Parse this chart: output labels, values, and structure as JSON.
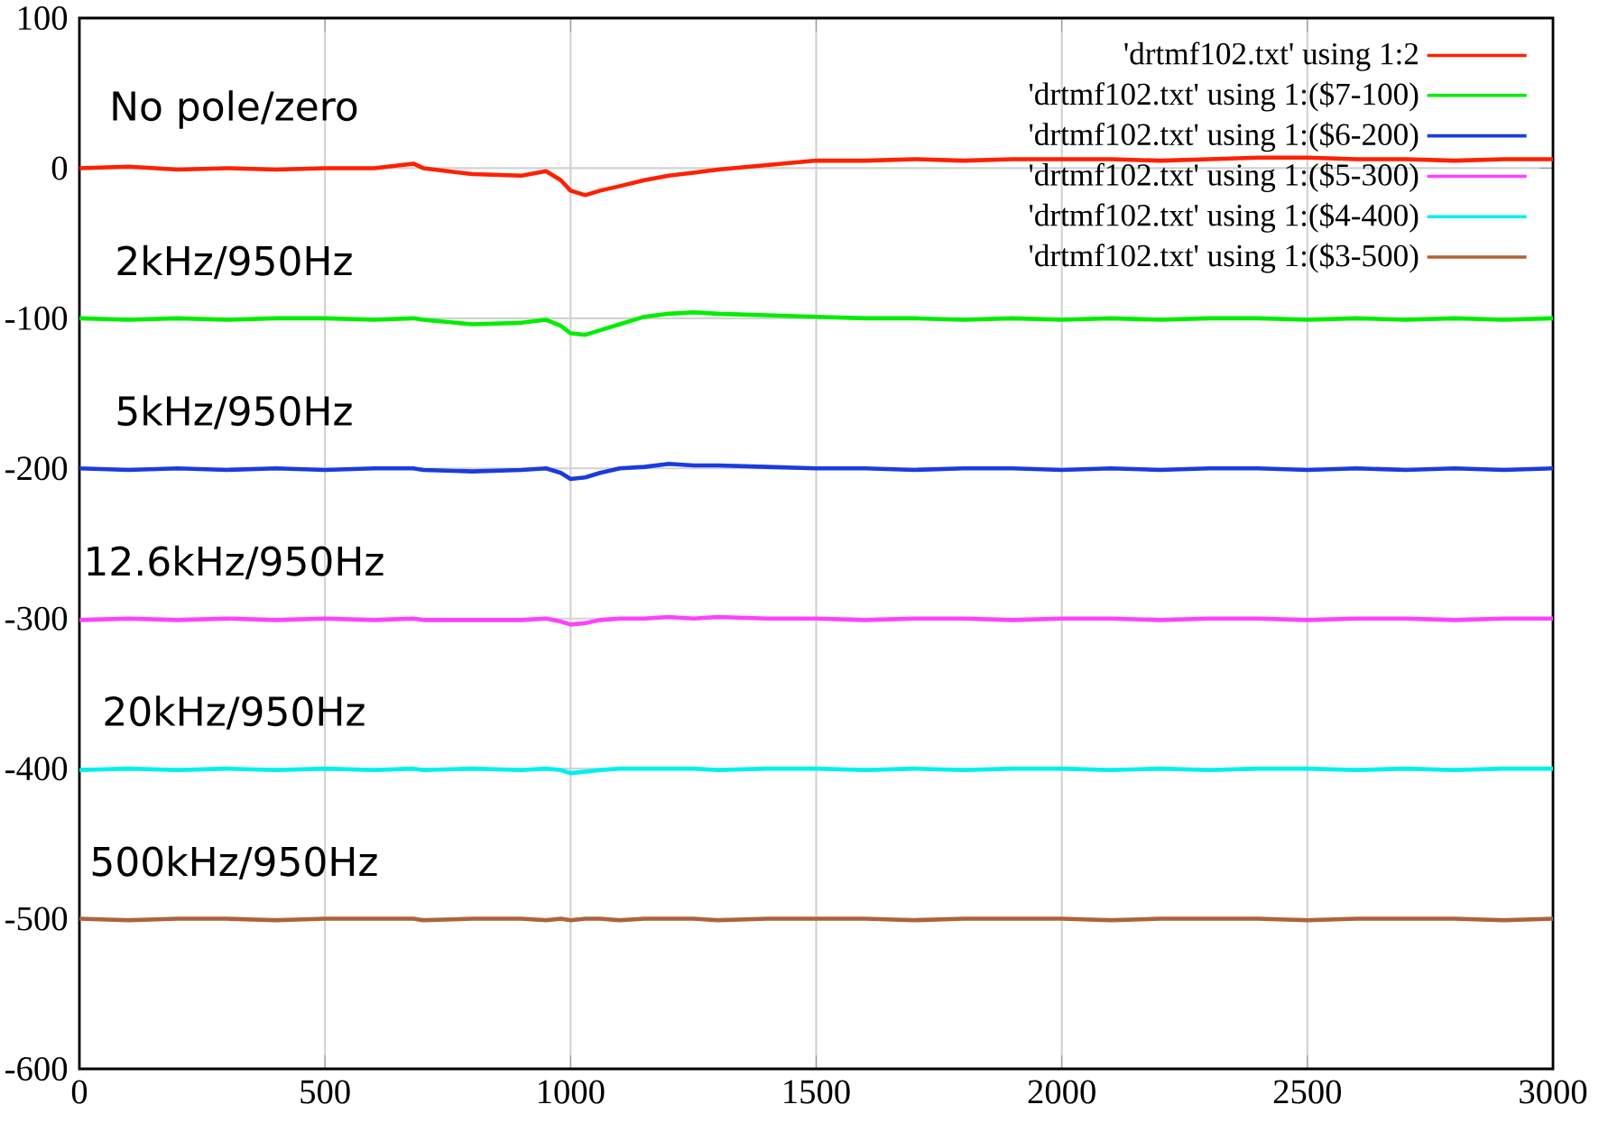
{
  "chart_data": {
    "type": "line",
    "x": [
      0,
      100,
      200,
      300,
      400,
      500,
      600,
      680,
      700,
      800,
      900,
      950,
      980,
      1000,
      1030,
      1060,
      1100,
      1150,
      1200,
      1250,
      1300,
      1400,
      1500,
      1600,
      1700,
      1800,
      1900,
      2000,
      2100,
      2200,
      2300,
      2400,
      2500,
      2600,
      2700,
      2800,
      2900,
      3000
    ],
    "series": [
      {
        "name": "'drtmf102.txt' using 1:2",
        "color": "#ff2000",
        "values": [
          0,
          1,
          -1,
          0,
          -1,
          0,
          0,
          3,
          0,
          -4,
          -5,
          -2,
          -8,
          -15,
          -18,
          -15,
          -12,
          -8,
          -5,
          -3,
          -1,
          2,
          5,
          5,
          6,
          5,
          6,
          6,
          6,
          5,
          6,
          7,
          7,
          6,
          6,
          5,
          6,
          6
        ]
      },
      {
        "name": "'drtmf102.txt' using 1:($7-100)",
        "color": "#00ee00",
        "values": [
          -100,
          -101,
          -100,
          -101,
          -100,
          -100,
          -101,
          -100,
          -101,
          -104,
          -103,
          -101,
          -105,
          -110,
          -111,
          -108,
          -104,
          -99,
          -97,
          -96,
          -97,
          -98,
          -99,
          -100,
          -100,
          -101,
          -100,
          -101,
          -100,
          -101,
          -100,
          -100,
          -101,
          -100,
          -101,
          -100,
          -101,
          -100
        ]
      },
      {
        "name": "'drtmf102.txt' using 1:($6-200)",
        "color": "#1a3be0",
        "values": [
          -200,
          -201,
          -200,
          -201,
          -200,
          -201,
          -200,
          -200,
          -201,
          -202,
          -201,
          -200,
          -203,
          -207,
          -206,
          -203,
          -200,
          -199,
          -197,
          -198,
          -198,
          -199,
          -200,
          -200,
          -201,
          -200,
          -200,
          -201,
          -200,
          -201,
          -200,
          -200,
          -201,
          -200,
          -201,
          -200,
          -201,
          -200
        ]
      },
      {
        "name": "'drtmf102.txt' using 1:($5-300)",
        "color": "#ff40ff",
        "values": [
          -301,
          -300,
          -301,
          -300,
          -301,
          -300,
          -301,
          -300,
          -301,
          -301,
          -301,
          -300,
          -302,
          -304,
          -303,
          -301,
          -300,
          -300,
          -299,
          -300,
          -299,
          -300,
          -300,
          -301,
          -300,
          -300,
          -301,
          -300,
          -300,
          -301,
          -300,
          -300,
          -301,
          -300,
          -300,
          -301,
          -300,
          -300
        ]
      },
      {
        "name": "'drtmf102.txt' using 1:($4-400)",
        "color": "#00f0f0",
        "values": [
          -401,
          -400,
          -401,
          -400,
          -401,
          -400,
          -401,
          -400,
          -401,
          -400,
          -401,
          -400,
          -401,
          -403,
          -402,
          -401,
          -400,
          -400,
          -400,
          -400,
          -401,
          -400,
          -400,
          -401,
          -400,
          -401,
          -400,
          -400,
          -401,
          -400,
          -401,
          -400,
          -400,
          -401,
          -400,
          -401,
          -400,
          -400
        ]
      },
      {
        "name": "'drtmf102.txt' using 1:($3-500)",
        "color": "#b0623a",
        "values": [
          -500,
          -501,
          -500,
          -500,
          -501,
          -500,
          -500,
          -500,
          -501,
          -500,
          -500,
          -501,
          -500,
          -501,
          -500,
          -500,
          -501,
          -500,
          -500,
          -500,
          -501,
          -500,
          -500,
          -500,
          -501,
          -500,
          -500,
          -500,
          -501,
          -500,
          -500,
          -500,
          -501,
          -500,
          -500,
          -500,
          -501,
          -500
        ]
      }
    ],
    "annotations": [
      "No pole/zero",
      "2kHz/950Hz",
      "5kHz/950Hz",
      "12.6kHz/950Hz",
      "20kHz/950Hz",
      "500kHz/950Hz"
    ],
    "xlim": [
      0,
      3000
    ],
    "ylim": [
      -600,
      100
    ],
    "xticks": [
      0,
      500,
      1000,
      1500,
      2000,
      2500,
      3000
    ],
    "yticks": [
      -600,
      -500,
      -400,
      -300,
      -200,
      -100,
      0,
      100
    ],
    "grid": true,
    "legend": "top right",
    "marker": "none",
    "line_style": "solid"
  }
}
